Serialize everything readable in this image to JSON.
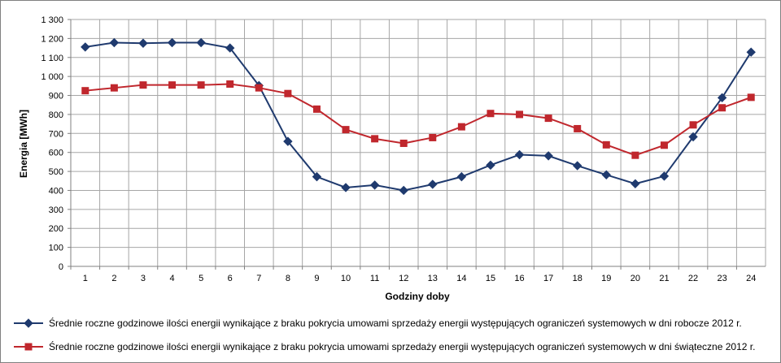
{
  "chart_data": {
    "type": "line",
    "categories": [
      "1",
      "2",
      "3",
      "4",
      "5",
      "6",
      "7",
      "8",
      "9",
      "10",
      "11",
      "12",
      "13",
      "14",
      "15",
      "16",
      "17",
      "18",
      "19",
      "20",
      "21",
      "22",
      "23",
      "24"
    ],
    "xlabel": "Godziny doby",
    "ylabel": "Energia [MWh]",
    "ylim": [
      0,
      1300
    ],
    "yticks": [
      "0",
      "100",
      "200",
      "300",
      "400",
      "500",
      "600",
      "700",
      "800",
      "900",
      "1 000",
      "1 100",
      "1 200",
      "1 300"
    ],
    "grid": true,
    "legend_position": "bottom",
    "series": [
      {
        "name": "Średnie roczne godzinowe ilości energii wynikające z braku pokrycia umowami sprzedaży energii występujących ograniczeń systemowych w dni robocze 2012 r.",
        "color": "#1F3A6E",
        "marker": "diamond",
        "values": [
          1155,
          1178,
          1175,
          1178,
          1178,
          1150,
          952,
          658,
          472,
          415,
          428,
          400,
          432,
          472,
          533,
          588,
          582,
          530,
          482,
          435,
          475,
          682,
          888,
          1128
        ]
      },
      {
        "name": "Średnie roczne godzinowe ilości energii wynikające z braku pokrycia umowami sprzedaży energii występujących ograniczeń systemowych w dni świąteczne 2012 r.",
        "color": "#C0272D",
        "marker": "square",
        "values": [
          925,
          940,
          955,
          955,
          955,
          960,
          940,
          910,
          828,
          720,
          672,
          648,
          678,
          735,
          805,
          800,
          780,
          725,
          640,
          585,
          638,
          745,
          835,
          890
        ]
      }
    ]
  }
}
